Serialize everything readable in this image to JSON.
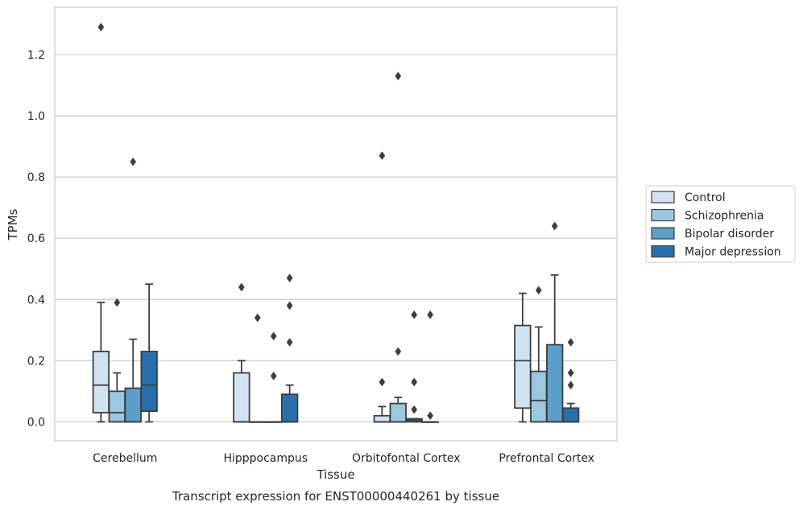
{
  "chart_data": {
    "type": "box",
    "title": "Transcript expression for ENST00000440261 by tissue",
    "xlabel": "Tissue",
    "ylabel": "TPMs",
    "ylim": [
      -0.062,
      1.355
    ],
    "yticks": [
      0.0,
      0.2,
      0.4,
      0.6,
      0.8,
      1.0,
      1.2
    ],
    "ytick_labels": [
      "0.0",
      "0.2",
      "0.4",
      "0.6",
      "0.8",
      "1.0",
      "1.2"
    ],
    "grid": true,
    "legend_position": "right",
    "categories": [
      "Cerebellum",
      "Hipppocampus",
      "Orbitofontal Cortex",
      "Prefrontal Cortex"
    ],
    "series": [
      {
        "name": "Control",
        "color": "#d1e2f2",
        "boxes": [
          {
            "whisker_low": 0.0,
            "q1": 0.03,
            "median": 0.12,
            "q3": 0.23,
            "whisker_high": 0.39,
            "outliers": [
              1.29
            ]
          },
          {
            "whisker_low": 0.0,
            "q1": 0.0,
            "median": 0.0,
            "q3": 0.16,
            "whisker_high": 0.2,
            "outliers": [
              0.44
            ]
          },
          {
            "whisker_low": 0.0,
            "q1": 0.0,
            "median": 0.0,
            "q3": 0.02,
            "whisker_high": 0.05,
            "outliers": [
              0.13,
              0.87
            ]
          },
          {
            "whisker_low": 0.0,
            "q1": 0.045,
            "median": 0.2,
            "q3": 0.315,
            "whisker_high": 0.42,
            "outliers": []
          }
        ]
      },
      {
        "name": "Schizophrenia",
        "color": "#9ac8e0",
        "boxes": [
          {
            "whisker_low": 0.0,
            "q1": 0.0,
            "median": 0.03,
            "q3": 0.1,
            "whisker_high": 0.16,
            "outliers": [
              0.39
            ]
          },
          {
            "whisker_low": 0.0,
            "q1": 0.0,
            "median": 0.0,
            "q3": 0.0,
            "whisker_high": 0.0,
            "outliers": [
              0.34
            ]
          },
          {
            "whisker_low": 0.0,
            "q1": 0.0,
            "median": 0.0,
            "q3": 0.06,
            "whisker_high": 0.08,
            "outliers": [
              0.23,
              1.13
            ]
          },
          {
            "whisker_low": 0.0,
            "q1": 0.0,
            "median": 0.07,
            "q3": 0.165,
            "whisker_high": 0.31,
            "outliers": [
              0.43
            ]
          }
        ]
      },
      {
        "name": "Bipolar disorder",
        "color": "#5a9ec9",
        "boxes": [
          {
            "whisker_low": 0.0,
            "q1": 0.0,
            "median": 0.0,
            "q3": 0.11,
            "whisker_high": 0.27,
            "outliers": [
              0.85
            ]
          },
          {
            "whisker_low": 0.0,
            "q1": 0.0,
            "median": 0.0,
            "q3": 0.0,
            "whisker_high": 0.0,
            "outliers": [
              0.15,
              0.28
            ]
          },
          {
            "whisker_low": 0.0,
            "q1": 0.0,
            "median": 0.005,
            "q3": 0.01,
            "whisker_high": 0.01,
            "outliers": [
              0.04,
              0.13,
              0.35
            ]
          },
          {
            "whisker_low": 0.0,
            "q1": 0.0,
            "median": 0.0,
            "q3": 0.252,
            "whisker_high": 0.48,
            "outliers": [
              0.64
            ]
          }
        ]
      },
      {
        "name": "Major depression",
        "color": "#2a6fad",
        "boxes": [
          {
            "whisker_low": 0.0,
            "q1": 0.035,
            "median": 0.12,
            "q3": 0.23,
            "whisker_high": 0.45,
            "outliers": []
          },
          {
            "whisker_low": 0.0,
            "q1": 0.0,
            "median": 0.0,
            "q3": 0.09,
            "whisker_high": 0.12,
            "outliers": [
              0.26,
              0.38,
              0.47
            ]
          },
          {
            "whisker_low": 0.0,
            "q1": 0.0,
            "median": 0.0,
            "q3": 0.0,
            "whisker_high": 0.0,
            "outliers": [
              0.02,
              0.35
            ]
          },
          {
            "whisker_low": 0.0,
            "q1": 0.0,
            "median": 0.0,
            "q3": 0.045,
            "whisker_high": 0.06,
            "outliers": [
              0.12,
              0.16,
              0.26
            ]
          }
        ]
      }
    ]
  }
}
